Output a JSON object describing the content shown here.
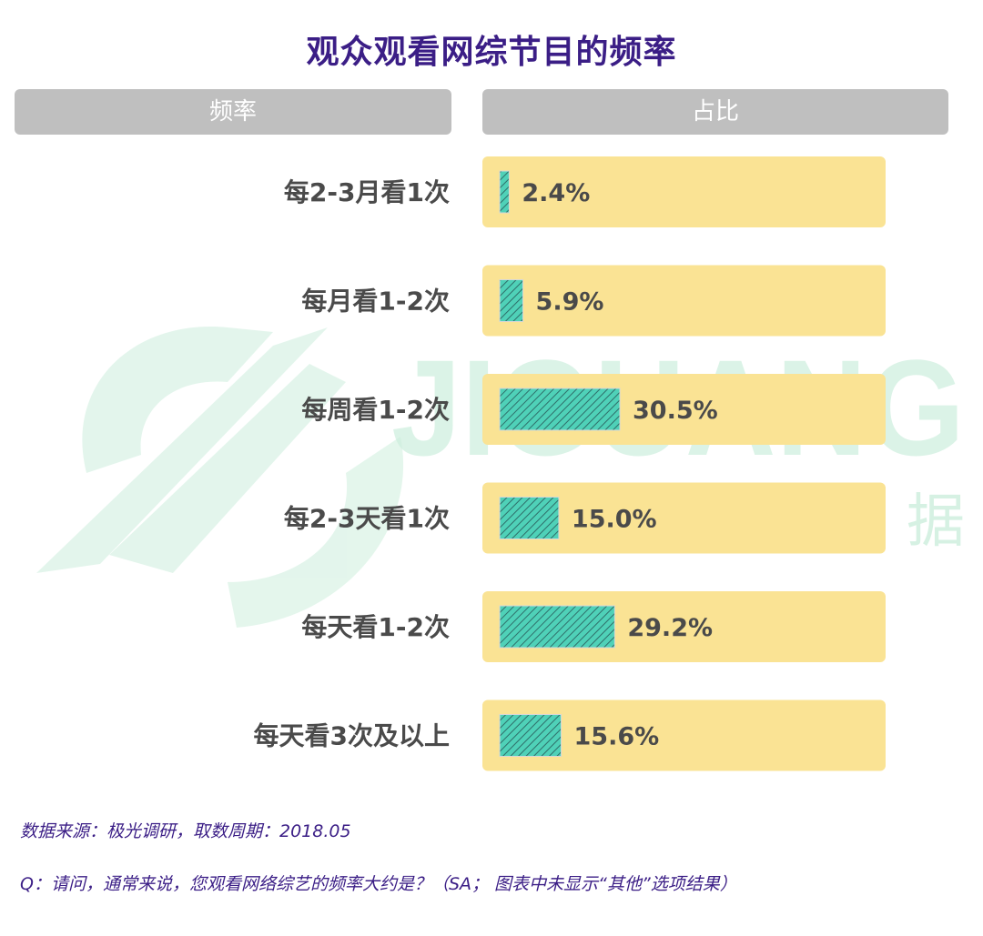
{
  "title": "观众观看网综节目的频率",
  "headers": {
    "left": "频率",
    "right": "占比"
  },
  "watermark": {
    "brand": "JIGUANG",
    "cn": "极光大数据"
  },
  "colors": {
    "title": "#3b1e86",
    "header_bg": "#bfbfbf",
    "row_bg": "#fae394",
    "bar_fill": "#4fd1b8",
    "bar_stripe": "#2f6f6a",
    "watermark": "#cdeedd"
  },
  "chart_data": {
    "type": "bar",
    "orientation": "horizontal",
    "categories": [
      "每2-3月看1次",
      "每月看1-2次",
      "每周看1-2次",
      "每2-3天看1次",
      "每天看1-2次",
      "每天看3次及以上"
    ],
    "values": [
      2.4,
      5.9,
      30.5,
      15.0,
      29.2,
      15.6
    ],
    "value_labels": [
      "2.4%",
      "5.9%",
      "30.5%",
      "15.0%",
      "29.2%",
      "15.6%"
    ],
    "unit": "%"
  },
  "footnotes": {
    "source": "数据来源：极光调研，取数周期：2018.05",
    "question": "Q：请问，通常来说，您观看网络综艺的频率大约是？（SA； 图表中未显示“其他”选项结果）"
  }
}
